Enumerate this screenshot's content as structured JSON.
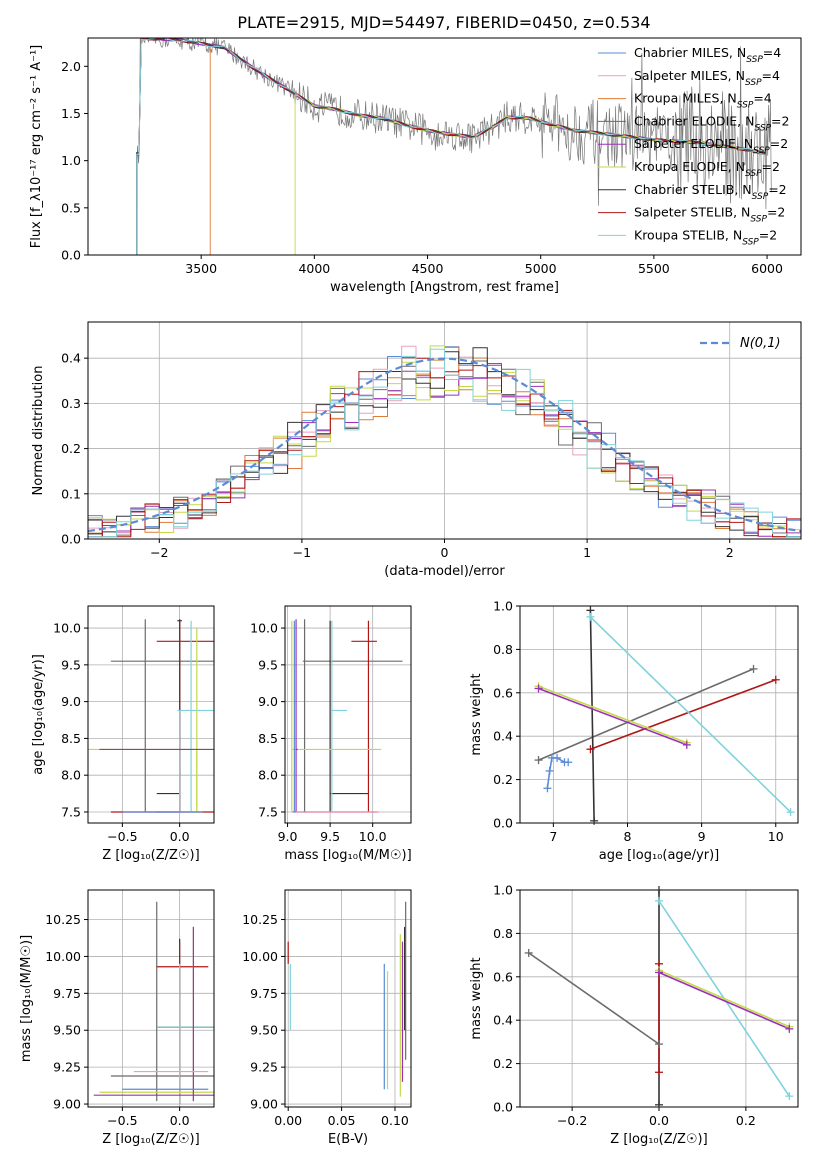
{
  "title": "PLATE=2915, MJD=54497, FIBERID=0450, z=0.534",
  "series": [
    {
      "name": "Chabrier MILES, N$_{SSP}$=4",
      "color": "#5b8bd6"
    },
    {
      "name": "Salpeter MILES, N$_{SSP}$=4",
      "color": "#e9a0c0"
    },
    {
      "name": "Kroupa MILES, N$_{SSP}$=4",
      "color": "#e07b39"
    },
    {
      "name": "Chabrier ELODIE, N$_{SSP}$=2",
      "color": "#6b6b6b"
    },
    {
      "name": "Salpeter ELODIE, N$_{SSP}$=2",
      "color": "#9b30b8"
    },
    {
      "name": "Kroupa ELODIE, N$_{SSP}$=2",
      "color": "#c4d94a"
    },
    {
      "name": "Chabrier STELIB, N$_{SSP}$=2",
      "color": "#333333"
    },
    {
      "name": "Salpeter STELIB, N$_{SSP}$=2",
      "color": "#b01818"
    },
    {
      "name": "Kroupa STELIB, N$_{SSP}$=2",
      "color": "#7fd3de"
    }
  ],
  "chart_data": [
    {
      "id": "spectrum",
      "type": "line",
      "xlabel": "wavelength [Angstrom, rest frame]",
      "ylabel": "Flux [f_λ10⁻¹⁷ erg cm⁻² s⁻¹ A⁻¹]",
      "xlim": [
        3000,
        6150
      ],
      "ylim": [
        0,
        2.3
      ],
      "xticks": [
        3500,
        4000,
        4500,
        5000,
        5500,
        6000
      ],
      "yticks": [
        0.0,
        0.5,
        1.0,
        1.5,
        2.0
      ],
      "model_knots": [
        [
          3230,
          2.3
        ],
        [
          3400,
          2.28
        ],
        [
          3600,
          2.2
        ],
        [
          3750,
          1.95
        ],
        [
          3900,
          1.73
        ],
        [
          4000,
          1.58
        ],
        [
          4100,
          1.54
        ],
        [
          4200,
          1.48
        ],
        [
          4300,
          1.45
        ],
        [
          4400,
          1.38
        ],
        [
          4500,
          1.32
        ],
        [
          4600,
          1.28
        ],
        [
          4700,
          1.25
        ],
        [
          4800,
          1.37
        ],
        [
          4850,
          1.46
        ],
        [
          4950,
          1.45
        ],
        [
          5050,
          1.38
        ],
        [
          5150,
          1.32
        ],
        [
          5300,
          1.28
        ],
        [
          5500,
          1.22
        ],
        [
          5700,
          1.19
        ],
        [
          5900,
          1.12
        ],
        [
          6000,
          1.07
        ]
      ],
      "model_starts": [
        3215,
        3215,
        3540,
        3215,
        3215,
        3915,
        3215,
        3215,
        3215
      ]
    },
    {
      "id": "residuals",
      "type": "line",
      "xlabel": "(data-model)/error",
      "ylabel": "Normed distribution",
      "xlim": [
        -2.5,
        2.5
      ],
      "ylim": [
        0,
        0.48
      ],
      "xticks": [
        -2,
        -1,
        0,
        1,
        2
      ],
      "yticks": [
        0.0,
        0.1,
        0.2,
        0.3,
        0.4
      ],
      "legend": "$\\mathcal{N}(0,1)$",
      "gaussian_color": "#5b8bd6"
    },
    {
      "id": "z-age",
      "type": "errorbar",
      "xlabel": "Z [log₁₀(Z/Z☉)]",
      "ylabel": "age  [log₁₀(age/yr)]",
      "xlim": [
        -0.8,
        0.3
      ],
      "ylim": [
        7.35,
        10.3
      ],
      "xticks": [
        -0.5,
        0.0
      ],
      "yticks": [
        7.5,
        8.0,
        8.5,
        9.0,
        9.5,
        10.0
      ],
      "points": [
        {
          "s": 4,
          "x": -0.3,
          "y": 9.55,
          "xlo": -0.6,
          "xhi": 0.3,
          "ylo": 7.5,
          "yhi": 10.12
        },
        {
          "s": 4,
          "x": 0.0,
          "y": 7.5,
          "xlo": -0.2,
          "xhi": 0.0,
          "ylo": 7.5,
          "yhi": 9.55
        },
        {
          "s": 7,
          "x": 0.0,
          "y": 10.1,
          "xlo": -0.02,
          "xhi": 0.02,
          "ylo": 7.5,
          "yhi": 10.12
        },
        {
          "s": 7,
          "x": 0.0,
          "y": 7.75,
          "xlo": -0.2,
          "xhi": 0.0,
          "ylo": 7.5,
          "yhi": 10.1
        },
        {
          "s": 8,
          "x": 0.0,
          "y": 9.82,
          "xlo": -0.2,
          "xhi": 0.3,
          "ylo": 7.5,
          "yhi": 10.1
        },
        {
          "s": 8,
          "x": 0.0,
          "y": 7.5,
          "xlo": -0.6,
          "xhi": 0.3,
          "ylo": 7.5,
          "yhi": 7.5
        },
        {
          "s": 9,
          "x": 0.1,
          "y": 8.88,
          "xlo": -0.02,
          "xhi": 0.3,
          "ylo": 7.5,
          "yhi": 10.1
        },
        {
          "s": 9,
          "x": 0.0,
          "y": 7.5,
          "xlo": -0.2,
          "xhi": 0.0,
          "ylo": 7.5,
          "yhi": 8.88
        },
        {
          "s": 6,
          "x": 0.15,
          "y": 8.35,
          "xlo": -0.8,
          "xhi": 0.3,
          "ylo": 7.5,
          "yhi": 10.0
        },
        {
          "s": 6,
          "x": 0.15,
          "y": 7.5,
          "xlo": 0.12,
          "xhi": 0.2,
          "ylo": 7.5,
          "yhi": 8.35
        },
        {
          "s": 5,
          "x": -0.15,
          "y": 8.35,
          "xlo": -0.7,
          "xhi": 0.3,
          "ylo": 8.35,
          "yhi": 8.35
        },
        {
          "s": 2,
          "x": 0.0,
          "y": 7.5,
          "xlo": -0.3,
          "xhi": 0.2,
          "ylo": 7.5,
          "yhi": 7.5
        },
        {
          "s": 1,
          "x": 0.0,
          "y": 7.5,
          "xlo": -0.5,
          "xhi": 0.2,
          "ylo": 7.5,
          "yhi": 7.5
        }
      ]
    },
    {
      "id": "mass-age",
      "type": "errorbar",
      "xlabel": "mass [log₁₀(M/M☉)]",
      "ylabel": "",
      "xlim": [
        8.97,
        10.45
      ],
      "ylim": [
        7.35,
        10.3
      ],
      "xticks": [
        9.0,
        9.5,
        10.0
      ],
      "yticks": [
        7.5,
        8.0,
        8.5,
        9.0,
        9.5,
        10.0
      ],
      "points": [
        {
          "s": 4,
          "x": 9.2,
          "y": 9.55,
          "xlo": 9.18,
          "xhi": 10.35,
          "ylo": 9.55,
          "yhi": 9.55
        },
        {
          "s": 4,
          "x": 9.2,
          "y": 7.5,
          "xlo": 9.18,
          "xhi": 9.22,
          "ylo": 7.5,
          "yhi": 10.12
        },
        {
          "s": 7,
          "x": 9.5,
          "y": 7.75,
          "xlo": 9.5,
          "xhi": 9.95,
          "ylo": 7.75,
          "yhi": 7.75
        },
        {
          "s": 7,
          "x": 9.5,
          "y": 10.1,
          "xlo": 9.5,
          "xhi": 9.5,
          "ylo": 7.5,
          "yhi": 10.1
        },
        {
          "s": 8,
          "x": 9.95,
          "y": 9.82,
          "xlo": 9.75,
          "xhi": 10.05,
          "ylo": 7.5,
          "yhi": 10.1
        },
        {
          "s": 8,
          "x": 9.95,
          "y": 7.5,
          "xlo": 9.1,
          "xhi": 10.05,
          "ylo": 7.5,
          "yhi": 7.5
        },
        {
          "s": 9,
          "x": 9.52,
          "y": 8.88,
          "xlo": 9.52,
          "xhi": 9.7,
          "ylo": 7.5,
          "yhi": 10.1
        },
        {
          "s": 6,
          "x": 9.05,
          "y": 8.35,
          "xlo": 9.05,
          "xhi": 10.1,
          "ylo": 7.5,
          "yhi": 10.1
        },
        {
          "s": 5,
          "x": 9.1,
          "y": 8.35,
          "xlo": 9.1,
          "xhi": 9.12,
          "ylo": 7.5,
          "yhi": 10.12
        },
        {
          "s": 2,
          "x": 9.1,
          "y": 7.5,
          "xlo": 9.05,
          "xhi": 10.08,
          "ylo": 7.5,
          "yhi": 7.5
        },
        {
          "s": 1,
          "x": 9.08,
          "y": 7.5,
          "xlo": 9.06,
          "xhi": 9.1,
          "ylo": 7.5,
          "yhi": 10.1
        }
      ]
    },
    {
      "id": "age-weight",
      "type": "line",
      "xlabel": "age  [log₁₀(age/yr)]",
      "ylabel": "mass weight",
      "xlim": [
        6.55,
        10.3
      ],
      "ylim": [
        0,
        1.0
      ],
      "xticks": [
        7,
        8,
        9,
        10
      ],
      "yticks": [
        0.0,
        0.2,
        0.4,
        0.6,
        0.8,
        1.0
      ],
      "lines": [
        {
          "s": 1,
          "x": [
            6.92,
            6.95,
            6.98,
            7.05,
            7.15,
            7.2
          ],
          "y": [
            0.16,
            0.24,
            0.3,
            0.3,
            0.28,
            0.28
          ]
        },
        {
          "s": 4,
          "x": [
            6.8,
            9.7
          ],
          "y": [
            0.29,
            0.71
          ]
        },
        {
          "s": 7,
          "x": [
            7.5,
            7.55
          ],
          "y": [
            0.98,
            0.01
          ]
        },
        {
          "s": 8,
          "x": [
            7.5,
            10.0
          ],
          "y": [
            0.34,
            0.66
          ]
        },
        {
          "s": 9,
          "x": [
            7.5,
            10.2
          ],
          "y": [
            0.95,
            0.05
          ]
        },
        {
          "s": 6,
          "x": [
            6.8,
            8.8
          ],
          "y": [
            0.63,
            0.37
          ]
        },
        {
          "s": 5,
          "x": [
            6.8,
            8.8
          ],
          "y": [
            0.62,
            0.36
          ]
        }
      ]
    },
    {
      "id": "z-mass",
      "type": "errorbar",
      "xlabel": "Z [log₁₀(Z/Z☉)]",
      "ylabel": "mass [log₁₀(M/M☉)]",
      "xlim": [
        -0.8,
        0.3
      ],
      "ylim": [
        8.98,
        10.45
      ],
      "xticks": [
        -0.5,
        0.0
      ],
      "yticks": [
        9.0,
        9.25,
        9.5,
        9.75,
        10.0,
        10.25
      ],
      "points": [
        {
          "s": 4,
          "x": -0.2,
          "y": 9.19,
          "xlo": -0.6,
          "xhi": 0.3,
          "ylo": 9.02,
          "yhi": 10.37
        },
        {
          "s": 7,
          "x": 0.0,
          "y": 9.52,
          "xlo": -0.2,
          "xhi": 0.3,
          "ylo": 9.0,
          "yhi": 10.12
        },
        {
          "s": 8,
          "x": 0.0,
          "y": 9.93,
          "xlo": -0.2,
          "xhi": 0.25,
          "ylo": 9.0,
          "yhi": 10.1
        },
        {
          "s": 9,
          "x": 0.0,
          "y": 9.52,
          "xlo": -0.2,
          "xhi": 0.3,
          "ylo": 9.0,
          "yhi": 9.95
        },
        {
          "s": 6,
          "x": 0.12,
          "y": 9.08,
          "xlo": -0.7,
          "xhi": 0.3,
          "ylo": 9.02,
          "yhi": 10.2
        },
        {
          "s": 5,
          "x": 0.12,
          "y": 9.06,
          "xlo": -0.75,
          "xhi": 0.3,
          "ylo": 9.02,
          "yhi": 10.2
        },
        {
          "s": 2,
          "x": 0.0,
          "y": 9.22,
          "xlo": -0.4,
          "xhi": 0.25,
          "ylo": 9.22,
          "yhi": 9.22
        },
        {
          "s": 1,
          "x": 0.0,
          "y": 9.1,
          "xlo": -0.5,
          "xhi": 0.25,
          "ylo": 9.1,
          "yhi": 9.1
        }
      ]
    },
    {
      "id": "ebv-mass",
      "type": "errorbar",
      "xlabel": "E(B-V)",
      "ylabel": "",
      "xlim": [
        -0.003,
        0.115
      ],
      "ylim": [
        8.98,
        10.45
      ],
      "xticks": [
        0.0,
        0.05,
        0.1
      ],
      "yticks": [
        9.0,
        9.25,
        9.5,
        9.75,
        10.0,
        10.25
      ],
      "points": [
        {
          "s": 8,
          "x": 0.0,
          "y": 9.95,
          "xlo": 0.0,
          "xhi": 0.0,
          "ylo": 9.95,
          "yhi": 10.1
        },
        {
          "s": 9,
          "x": 0.002,
          "y": 9.5,
          "xlo": 0.002,
          "xhi": 0.002,
          "ylo": 9.5,
          "yhi": 9.95
        },
        {
          "s": 1,
          "x": 0.09,
          "y": 9.5,
          "xlo": 0.09,
          "xhi": 0.09,
          "ylo": 9.1,
          "yhi": 9.95
        },
        {
          "s": 6,
          "x": 0.093,
          "y": 9.5,
          "xlo": 0.093,
          "xhi": 0.093,
          "ylo": 9.1,
          "yhi": 9.9
        },
        {
          "s": 5,
          "x": 0.107,
          "y": 9.6,
          "xlo": 0.107,
          "xhi": 0.107,
          "ylo": 9.15,
          "yhi": 10.1
        },
        {
          "s": 6,
          "x": 0.105,
          "y": 9.5,
          "xlo": 0.105,
          "xhi": 0.105,
          "ylo": 9.05,
          "yhi": 10.15
        },
        {
          "s": 4,
          "x": 0.11,
          "y": 9.9,
          "xlo": 0.11,
          "xhi": 0.11,
          "ylo": 9.3,
          "yhi": 10.37
        },
        {
          "s": 7,
          "x": 0.109,
          "y": 9.9,
          "xlo": 0.109,
          "xhi": 0.109,
          "ylo": 9.5,
          "yhi": 10.2
        }
      ]
    },
    {
      "id": "z-weight",
      "type": "line",
      "xlabel": "Z [log₁₀(Z/Z☉)]",
      "ylabel": "mass weight",
      "xlim": [
        -0.32,
        0.32
      ],
      "ylim": [
        0,
        1.0
      ],
      "xticks": [
        -0.2,
        0.0,
        0.2
      ],
      "yticks": [
        0.0,
        0.2,
        0.4,
        0.6,
        0.8,
        1.0
      ],
      "lines": [
        {
          "s": 4,
          "x": [
            -0.3,
            0.0
          ],
          "y": [
            0.71,
            0.29
          ]
        },
        {
          "s": 7,
          "x": [
            0.0,
            0.0
          ],
          "y": [
            1.0,
            0.01
          ]
        },
        {
          "s": 8,
          "x": [
            0.0,
            0.0
          ],
          "y": [
            0.66,
            0.16
          ]
        },
        {
          "s": 9,
          "x": [
            0.0,
            0.3
          ],
          "y": [
            0.95,
            0.05
          ]
        },
        {
          "s": 6,
          "x": [
            0.0,
            0.3
          ],
          "y": [
            0.63,
            0.37
          ]
        },
        {
          "s": 5,
          "x": [
            0.0,
            0.3
          ],
          "y": [
            0.62,
            0.36
          ]
        }
      ]
    }
  ]
}
